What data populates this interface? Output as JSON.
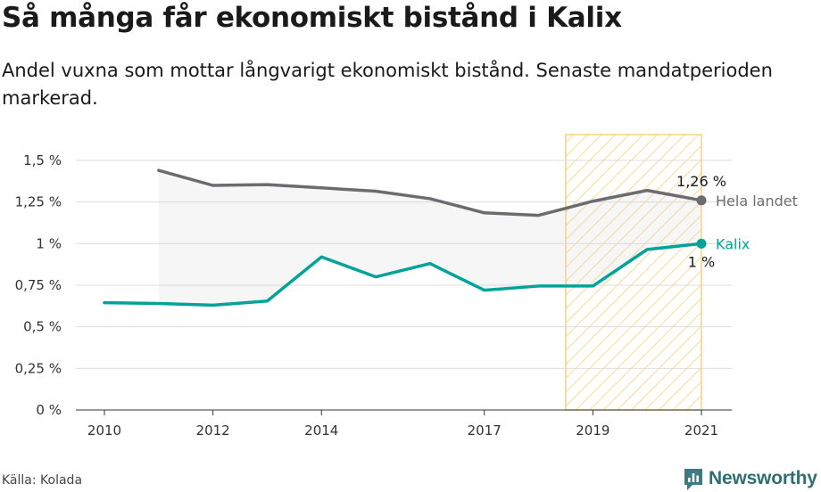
{
  "title": "Så många får ekonomiskt bistånd i Kalix",
  "subtitle": "Andel vuxna som mottar långvarigt ekonomiskt bistånd. Senaste mandatperioden markerad.",
  "source": "Källa: Kolada",
  "brand": "Newsworthy",
  "chart_data": {
    "type": "line",
    "ylim": [
      0,
      1.5
    ],
    "xlim": [
      2010,
      2021
    ],
    "y_ticks": [
      {
        "value": 0,
        "label": "0 %"
      },
      {
        "value": 0.25,
        "label": "0,25 %"
      },
      {
        "value": 0.5,
        "label": "0,5 %"
      },
      {
        "value": 0.75,
        "label": "0,75 %"
      },
      {
        "value": 1,
        "label": "1 %"
      },
      {
        "value": 1.25,
        "label": "1,25 %"
      },
      {
        "value": 1.5,
        "label": "1,5 %"
      }
    ],
    "x_ticks": [
      {
        "value": 2010,
        "label": "2010"
      },
      {
        "value": 2012,
        "label": "2012"
      },
      {
        "value": 2014,
        "label": "2014"
      },
      {
        "value": 2017,
        "label": "2017"
      },
      {
        "value": 2019,
        "label": "2019"
      },
      {
        "value": 2021,
        "label": "2021"
      }
    ],
    "highlight_period": [
      2018.5,
      2021
    ],
    "grid": true,
    "series": [
      {
        "name": "Hela landet",
        "color": "#6d6b70",
        "end_value_label": "1,26 %",
        "points": [
          [
            2011,
            1.44
          ],
          [
            2012,
            1.35
          ],
          [
            2013,
            1.355
          ],
          [
            2014,
            1.335
          ],
          [
            2015,
            1.315
          ],
          [
            2016,
            1.27
          ],
          [
            2017,
            1.185
          ],
          [
            2018,
            1.17
          ],
          [
            2019,
            1.255
          ],
          [
            2020,
            1.32
          ],
          [
            2021,
            1.26
          ]
        ]
      },
      {
        "name": "Kalix",
        "color": "#00a39a",
        "end_value_label": "1 %",
        "points": [
          [
            2010,
            0.645
          ],
          [
            2011,
            0.64
          ],
          [
            2012,
            0.63
          ],
          [
            2013,
            0.655
          ],
          [
            2014,
            0.92
          ],
          [
            2015,
            0.8
          ],
          [
            2016,
            0.88
          ],
          [
            2017,
            0.72
          ],
          [
            2018,
            0.745
          ],
          [
            2019,
            0.745
          ],
          [
            2020,
            0.965
          ],
          [
            2021,
            1.0
          ]
        ]
      }
    ]
  }
}
